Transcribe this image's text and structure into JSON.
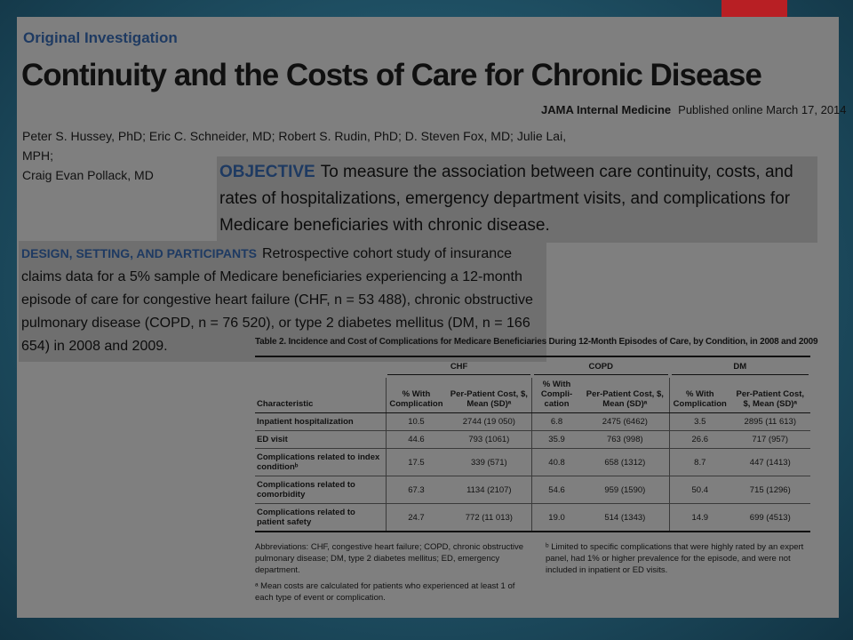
{
  "header": {
    "section_label": "Original Investigation",
    "title": "Continuity and the Costs of Care for Chronic Disease",
    "journal": "JAMA Internal Medicine",
    "published": "Published online March 17, 2014",
    "authors_line1": "Peter S. Hussey, PhD; Eric C. Schneider, MD; Robert S. Rudin, PhD; D. Steven Fox, MD; Julie Lai, MPH;",
    "authors_line2": "Craig Evan Pollack, MD"
  },
  "objective": {
    "label": "OBJECTIVE",
    "text": "To measure the association between care continuity, costs, and rates of hospitalizations, emergency department visits, and complications for Medicare beneficiaries with chronic disease."
  },
  "design": {
    "label": "DESIGN, SETTING, AND PARTICIPANTS",
    "text": "Retrospective cohort study of insurance claims data for a 5% sample of Medicare beneficiaries experiencing a 12-month episode of care for congestive heart failure (CHF, n = 53 488), chronic obstructive pulmonary disease (COPD, n = 76 520), or type 2 diabetes mellitus (DM, n = 166 654) in 2008 and 2009."
  },
  "table": {
    "caption": "Table 2. Incidence and Cost of Complications for Medicare Beneficiaries During 12-Month Episodes of Care, by Condition, in 2008 and 2009",
    "groups": [
      "CHF",
      "COPD",
      "DM"
    ],
    "col_characteristic": "Characteristic",
    "col_pct_chf": "% With Complication",
    "col_cost_chf": "Per-Patient Cost, $, Mean (SD)ᵃ",
    "col_pct_copd": "% With Compli-cation",
    "col_cost_copd": "Per-Patient Cost, $, Mean (SD)ᵃ",
    "col_pct_dm": "% With Complication",
    "col_cost_dm": "Per-Patient Cost, $, Mean (SD)ᵃ",
    "rows": [
      {
        "label": "Inpatient hospitalization",
        "chf_pct": "10.5",
        "chf_cost": "2744 (19 050)",
        "copd_pct": "6.8",
        "copd_cost": "2475 (6462)",
        "dm_pct": "3.5",
        "dm_cost": "2895 (11 613)"
      },
      {
        "label": "ED visit",
        "chf_pct": "44.6",
        "chf_cost": "793 (1061)",
        "copd_pct": "35.9",
        "copd_cost": "763 (998)",
        "dm_pct": "26.6",
        "dm_cost": "717 (957)"
      },
      {
        "label": "Complications related to index conditionᵇ",
        "chf_pct": "17.5",
        "chf_cost": "339 (571)",
        "copd_pct": "40.8",
        "copd_cost": "658 (1312)",
        "dm_pct": "8.7",
        "dm_cost": "447 (1413)"
      },
      {
        "label": "Complications related to comorbidity",
        "chf_pct": "67.3",
        "chf_cost": "1134 (2107)",
        "copd_pct": "54.6",
        "copd_cost": "959 (1590)",
        "dm_pct": "50.4",
        "dm_cost": "715 (1296)"
      },
      {
        "label": "Complications related to patient safety",
        "chf_pct": "24.7",
        "chf_cost": "772 (11 013)",
        "copd_pct": "19.0",
        "copd_cost": "514 (1343)",
        "dm_pct": "14.9",
        "dm_cost": "699 (4513)"
      }
    ],
    "footnote_abbrev": "Abbreviations: CHF, congestive heart failure; COPD, chronic obstructive pulmonary disease; DM, type 2 diabetes mellitus; ED, emergency department.",
    "footnote_a": "ᵃ Mean costs are calculated for patients who experienced at least 1 of each type of event or complication.",
    "footnote_b": "ᵇ Limited to specific complications that were highly rated by an expert panel, had 1% or higher prevalence for the episode, and were not included in inpatient or ED visits."
  },
  "colors": {
    "accent": "#b81f24",
    "label_blue": "#1e3a62",
    "slide_bg": "#7f7f7f",
    "highlight_bg": "#6f6f6f",
    "frame": "#1f5064"
  }
}
